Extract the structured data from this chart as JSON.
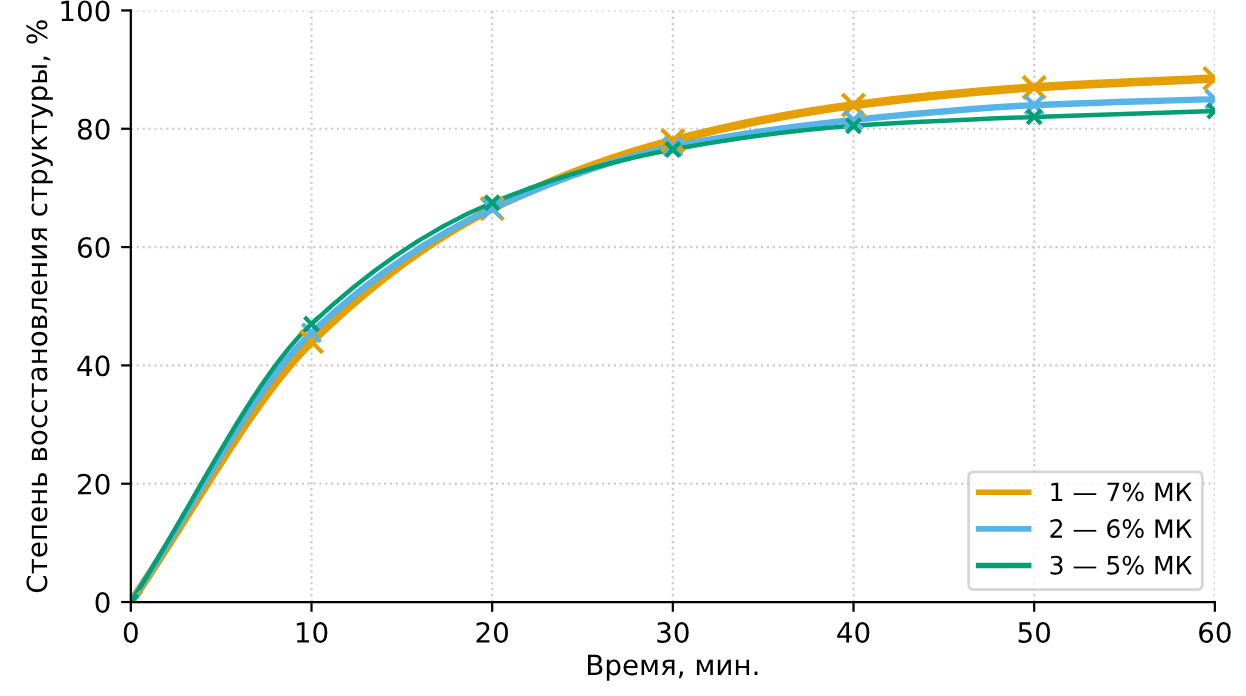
{
  "chart_data": {
    "type": "line",
    "xlabel": "Время, мин.",
    "ylabel": "Степень восстановления структуры, %",
    "x": [
      0,
      10,
      20,
      30,
      40,
      50,
      60
    ],
    "series": [
      {
        "name": "1 — 7% МК",
        "color": "#e69f00",
        "values": [
          0,
          44,
          66.5,
          78,
          84,
          87,
          88.5
        ]
      },
      {
        "name": "2 — 6% МК",
        "color": "#56b4e9",
        "values": [
          0,
          45.5,
          66.5,
          77,
          81.5,
          84,
          85
        ]
      },
      {
        "name": "3 — 5% МК",
        "color": "#009e73",
        "values": [
          0,
          47,
          67.5,
          76.5,
          80.5,
          82,
          83
        ]
      }
    ],
    "xlim": [
      0,
      60
    ],
    "ylim": [
      0,
      100
    ],
    "xticks": [
      0,
      10,
      20,
      30,
      40,
      50,
      60
    ],
    "yticks": [
      0,
      20,
      40,
      60,
      80,
      100
    ],
    "grid": true,
    "legend": "lower right",
    "marker": "cross",
    "line_style": "solid"
  }
}
